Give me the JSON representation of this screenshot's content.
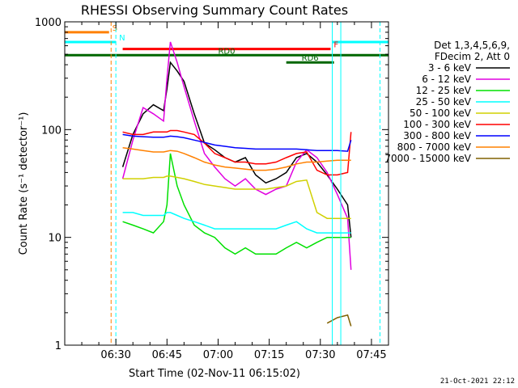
{
  "chart_data": {
    "type": "line",
    "title": "RHESSI Observing Summary Count Rates",
    "xlabel": "Start Time (02-Nov-11 06:15:02)",
    "ylabel": "Count Rate (s⁻¹ detector⁻¹)",
    "xlim_minutes": [
      0,
      95
    ],
    "ylim": [
      1,
      1000
    ],
    "yscale": "log",
    "x_ticks": [
      {
        "label": "06:30",
        "minute": 15
      },
      {
        "label": "06:45",
        "minute": 30
      },
      {
        "label": "07:00",
        "minute": 45
      },
      {
        "label": "07:15",
        "minute": 60
      },
      {
        "label": "07:30",
        "minute": 75
      },
      {
        "label": "07:45",
        "minute": 90
      }
    ],
    "y_ticks": [
      {
        "label": "1",
        "value": 1
      },
      {
        "label": "10",
        "value": 10
      },
      {
        "label": "100",
        "value": 100
      },
      {
        "label": "1000",
        "value": 1000
      }
    ],
    "legend_header": [
      "Det 1,3,4,5,6,9,",
      "FDecim 2, Att 0"
    ],
    "legend_placement": "right",
    "x": [
      14,
      17,
      20,
      23,
      26,
      29,
      30,
      31,
      33,
      35,
      38,
      41,
      44,
      47,
      50,
      53,
      56,
      59,
      62,
      65,
      68,
      71,
      74,
      77,
      80,
      83,
      84
    ],
    "series": [
      {
        "name": "3 - 6 keV",
        "color": "#000000",
        "values": [
          null,
          45,
          90,
          140,
          170,
          150,
          240,
          420,
          350,
          280,
          140,
          75,
          65,
          55,
          50,
          55,
          38,
          32,
          35,
          40,
          55,
          60,
          50,
          38,
          28,
          20,
          10
        ]
      },
      {
        "name": "6 - 12 keV",
        "color": "#e000e0",
        "values": [
          null,
          35,
          80,
          160,
          140,
          120,
          300,
          650,
          420,
          250,
          120,
          60,
          45,
          35,
          30,
          35,
          28,
          25,
          28,
          30,
          50,
          65,
          55,
          40,
          25,
          15,
          5
        ]
      },
      {
        "name": "12 - 25 keV",
        "color": "#00e000",
        "values": [
          null,
          14,
          13,
          12,
          11,
          14,
          20,
          60,
          30,
          20,
          13,
          11,
          10,
          8,
          7,
          8,
          7,
          7,
          7,
          8,
          9,
          8,
          9,
          10,
          10,
          10,
          10
        ]
      },
      {
        "name": "25 - 50 keV",
        "color": "#00ffff",
        "values": [
          null,
          17,
          17,
          16,
          16,
          16,
          17,
          17,
          16,
          15,
          14,
          13,
          12,
          12,
          12,
          12,
          12,
          12,
          12,
          13,
          14,
          12,
          11,
          11,
          11,
          11,
          11
        ]
      },
      {
        "name": "50 - 100 keV",
        "color": "#d0d000",
        "values": [
          null,
          35,
          35,
          35,
          36,
          36,
          37,
          37,
          36,
          35,
          33,
          31,
          30,
          29,
          28,
          28,
          28,
          28,
          29,
          30,
          33,
          34,
          17,
          15,
          15,
          15,
          15
        ]
      },
      {
        "name": "100 - 300 keV",
        "color": "#ff0000",
        "values": [
          null,
          95,
          90,
          90,
          95,
          95,
          95,
          98,
          98,
          95,
          90,
          75,
          60,
          55,
          50,
          50,
          48,
          48,
          50,
          55,
          60,
          62,
          42,
          38,
          38,
          40,
          95
        ]
      },
      {
        "name": "300 - 800 keV",
        "color": "#0000ff",
        "values": [
          null,
          90,
          87,
          86,
          85,
          85,
          86,
          87,
          86,
          84,
          80,
          76,
          72,
          70,
          68,
          67,
          66,
          66,
          66,
          66,
          66,
          65,
          64,
          64,
          64,
          63,
          80
        ]
      },
      {
        "name": "800 - 7000 keV",
        "color": "#ff8000",
        "values": [
          null,
          68,
          66,
          64,
          62,
          62,
          63,
          64,
          63,
          60,
          55,
          50,
          47,
          45,
          44,
          43,
          42,
          42,
          43,
          45,
          48,
          50,
          50,
          51,
          52,
          52,
          52
        ]
      },
      {
        "name": "7000 - 15000 keV",
        "color": "#806000",
        "values": [
          null,
          null,
          null,
          null,
          null,
          null,
          null,
          null,
          null,
          null,
          null,
          null,
          null,
          null,
          null,
          null,
          null,
          null,
          null,
          null,
          null,
          null,
          null,
          1.6,
          1.8,
          1.9,
          1.5
        ]
      }
    ],
    "vertical_markers": [
      {
        "minute": 13.6,
        "color": "#ff8000",
        "style": "dashed"
      },
      {
        "minute": 15,
        "color": "#00ffff",
        "style": "dashed"
      },
      {
        "minute": 78.5,
        "color": "#00ffff",
        "style": "solid"
      },
      {
        "minute": 81,
        "color": "#00ffff",
        "style": "solid"
      },
      {
        "minute": 92.5,
        "color": "#00ffff",
        "style": "dashed"
      }
    ],
    "flags": [
      {
        "label": "S",
        "color": "#ff8000",
        "y_value": 800,
        "segments": [
          [
            0,
            13
          ]
        ]
      },
      {
        "label": "N",
        "color": "#00ffff",
        "y_value": 650,
        "segments": [
          [
            0,
            15
          ],
          [
            78.5,
            95
          ]
        ]
      },
      {
        "label": "F",
        "color": "#ff0000",
        "y_value": 560,
        "segments": [
          [
            17,
            78
          ]
        ]
      },
      {
        "label": "RD0",
        "color": "#006600",
        "y_value": 490,
        "segments": [
          [
            0,
            95
          ]
        ]
      },
      {
        "label": "RD6",
        "color": "#006600",
        "y_value": 420,
        "segments": [
          [
            65,
            79
          ]
        ]
      }
    ]
  },
  "timestamp": "21-Oct-2021 22:12"
}
